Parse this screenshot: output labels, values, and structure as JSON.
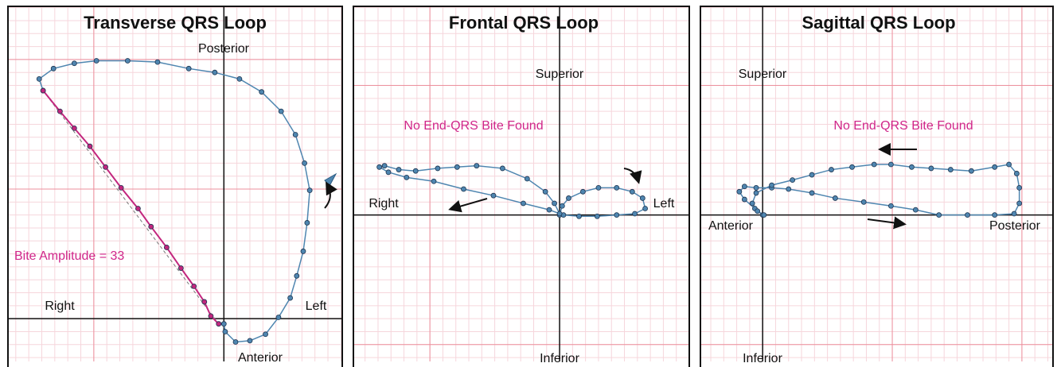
{
  "chart_data": [
    {
      "type": "line",
      "title": "Transverse QRS Loop",
      "labels": {
        "top": "Posterior",
        "bottom": "Anterior",
        "left": "Right",
        "right": "Left"
      },
      "annotation": "Bite Amplitude = 33",
      "xlim": [
        -166,
        91
      ],
      "ylim": [
        -33,
        241
      ],
      "xticks": [
        -100,
        0
      ],
      "yticks": [
        0,
        100,
        200
      ],
      "grid": true,
      "series": [
        {
          "color": "#4f86b0",
          "x": [
            0,
            1,
            9,
            20,
            32,
            42,
            51,
            56,
            61,
            64,
            66,
            62,
            55,
            44,
            29,
            12,
            -7,
            -27,
            -51,
            -74,
            -98,
            -115,
            -131,
            -142,
            -139
          ],
          "y": [
            -4,
            -10,
            -18,
            -17,
            -12,
            1,
            16,
            33,
            52,
            74,
            99,
            120,
            142,
            160,
            175,
            185,
            190,
            193,
            198,
            199,
            199,
            197,
            193,
            185,
            176
          ]
        },
        {
          "color": "#c2267e",
          "x": [
            -139,
            -126,
            -115,
            -103,
            -91,
            -79,
            -66,
            -56,
            -44,
            -33,
            -23,
            -15,
            -10,
            -4
          ],
          "y": [
            176,
            160,
            147,
            133,
            117,
            101,
            85,
            71,
            55,
            39,
            25,
            13,
            2,
            -4
          ]
        }
      ]
    },
    {
      "type": "line",
      "title": "Frontal QRS Loop",
      "labels": {
        "top": "Superior",
        "bottom": "Inferior",
        "left": "Right",
        "right": "Left"
      },
      "annotation": "No End-QRS Bite Found",
      "xlim": [
        -159,
        100
      ],
      "ylim": [
        -113,
        161
      ],
      "xticks": [
        -100,
        0
      ],
      "yticks": [
        -100,
        0,
        100
      ],
      "grid": true,
      "series": [
        {
          "color": "#4f86b0",
          "x": [
            0,
            2,
            7,
            18,
            30,
            44,
            56,
            64,
            66,
            58,
            44,
            29,
            15,
            3,
            -8,
            -28,
            -51,
            -74,
            -97,
            -118,
            -132,
            -139,
            -135,
            -124,
            -111,
            -94,
            -79,
            -64,
            -44,
            -25,
            -11,
            -4,
            0
          ],
          "y": [
            0,
            7,
            13,
            18,
            21,
            21,
            18,
            13,
            5,
            1,
            0,
            -1,
            -1,
            0,
            4,
            9,
            15,
            20,
            26,
            29,
            33,
            37,
            38,
            35,
            34,
            36,
            37,
            38,
            36,
            28,
            18,
            9,
            1
          ]
        }
      ]
    },
    {
      "type": "line",
      "title": "Sagittal QRS Loop",
      "labels": {
        "top": "Superior",
        "bottom": "Inferior",
        "left": "Anterior",
        "right": "Posterior"
      },
      "annotation": "No End-QRS Bite Found",
      "xlim": [
        -48,
        224
      ],
      "ylim": [
        -113,
        161
      ],
      "xticks": [
        0,
        100,
        200
      ],
      "yticks": [
        -100,
        0,
        100
      ],
      "grid": true,
      "series": [
        {
          "color": "#4f86b0",
          "x": [
            0,
            -6,
            -14,
            -18,
            -14,
            -5,
            7,
            20,
            38,
            56,
            78,
            99,
            118,
            136,
            158,
            179,
            194,
            198,
            198,
            196,
            190,
            179,
            161,
            145,
            130,
            115,
            99,
            86,
            69,
            53,
            38,
            23,
            7,
            -5,
            -8,
            -4,
            1
          ],
          "y": [
            0,
            5,
            12,
            18,
            22,
            21,
            21,
            20,
            17,
            13,
            10,
            7,
            4,
            0,
            0,
            0,
            1,
            9,
            21,
            32,
            39,
            37,
            34,
            35,
            36,
            37,
            39,
            39,
            37,
            35,
            31,
            27,
            23,
            17,
            9,
            3,
            0
          ]
        }
      ]
    }
  ]
}
